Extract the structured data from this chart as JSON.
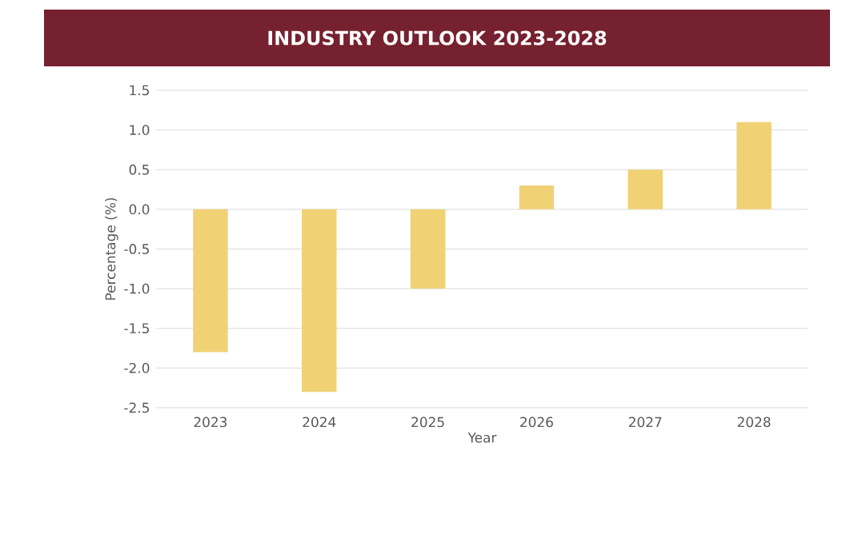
{
  "chart_data": {
    "type": "bar",
    "title": "INDUSTRY OUTLOOK 2023-2028",
    "xlabel": "Year",
    "ylabel": "Percentage (%)",
    "categories": [
      "2023",
      "2024",
      "2025",
      "2026",
      "2027",
      "2028"
    ],
    "values": [
      -1.8,
      -2.3,
      -1.0,
      0.3,
      0.5,
      1.1
    ],
    "color": "#f0d275",
    "ylim": [
      -2.5,
      1.5
    ],
    "yticks": [
      {
        "value": 1.5,
        "label": "1.5"
      },
      {
        "value": 1.0,
        "label": "1.0"
      },
      {
        "value": 0.5,
        "label": "0.5"
      },
      {
        "value": 0.0,
        "label": "0.0"
      },
      {
        "value": -0.5,
        "label": "-0.5"
      },
      {
        "value": -1.0,
        "label": "-1.0"
      },
      {
        "value": -1.5,
        "label": "-1.5"
      },
      {
        "value": -2.0,
        "label": "-2.0"
      },
      {
        "value": -2.5,
        "label": "-2.5"
      }
    ],
    "grid": "y"
  }
}
